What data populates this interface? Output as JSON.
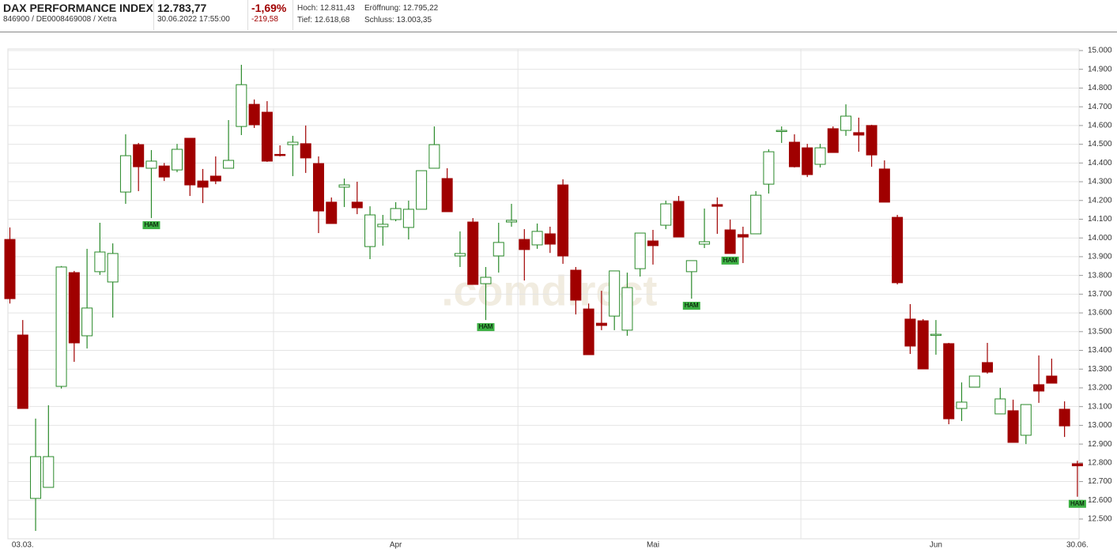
{
  "header": {
    "name": "DAX PERFORMANCE INDEX",
    "ids": "846900 / DE0008469008 / Xetra",
    "price": "12.783,77",
    "datetime": "30.06.2022 17:55:00",
    "change_pct": "-1,69%",
    "change_abs": "-219,58",
    "high": "Hoch: 12.811,43",
    "open": "Eröffnung: 12.795,22",
    "low": "Tief: 12.618,68",
    "close": "Schluss: 13.003,35",
    "watermark": ".comdirect"
  },
  "chart_data": {
    "type": "candlestick",
    "categories": [
      null,
      "03.03.",
      null,
      null,
      null,
      null,
      null,
      null,
      null,
      null,
      null,
      null,
      null,
      null,
      null,
      null,
      null,
      null,
      null,
      null,
      null,
      null,
      null,
      null,
      null,
      null,
      null,
      null,
      null,
      null,
      "Apr",
      null,
      null,
      null,
      null,
      null,
      null,
      null,
      null,
      null,
      null,
      null,
      null,
      null,
      null,
      null,
      null,
      null,
      null,
      null,
      "Mai",
      null,
      null,
      null,
      null,
      null,
      null,
      null,
      null,
      null,
      null,
      null,
      null,
      null,
      null,
      null,
      null,
      null,
      null,
      null,
      null,
      null,
      "Jun",
      null,
      null,
      null,
      null,
      null,
      null,
      null,
      null,
      null,
      null,
      "30.06."
    ],
    "open": [
      13992,
      13482,
      12610,
      12669,
      13208,
      13815,
      13478,
      13820,
      13765,
      14245,
      14498,
      14372,
      14384,
      14363,
      14532,
      14304,
      14330,
      14372,
      14595,
      14713,
      14671,
      14446,
      14498,
      14503,
      14397,
      14191,
      14271,
      14191,
      13954,
      14060,
      14098,
      14056,
      14153,
      14372,
      14317,
      13904,
      14085,
      13756,
      13904,
      14085,
      13992,
      13963,
      14022,
      14283,
      13828,
      13621,
      13545,
      13583,
      13508,
      13836,
      13984,
      14068,
      14195,
      13820,
      13967,
      14178,
      14043,
      14018,
      14022,
      14287,
      14570,
      14511,
      14481,
      14393,
      14583,
      14574,
      14562,
      14600,
      14368,
      14110,
      13567,
      13558,
      13482,
      13436,
      13090,
      13204,
      13335,
      13061,
      13078,
      12947,
      13217,
      13263,
      13086,
      12795
    ],
    "high": [
      14056,
      13562,
      13036,
      13107,
      13850,
      13824,
      13942,
      14081,
      13971,
      14553,
      14507,
      14469,
      14400,
      14502,
      14532,
      14368,
      14435,
      14629,
      14924,
      14739,
      14730,
      14494,
      14545,
      14600,
      14435,
      14216,
      14317,
      14300,
      14169,
      14123,
      14191,
      14199,
      14359,
      14595,
      14372,
      14035,
      14106,
      13845,
      14081,
      14182,
      14047,
      14077,
      14060,
      14313,
      13845,
      13650,
      13718,
      13824,
      13815,
      14026,
      14043,
      14199,
      14224,
      13879,
      14157,
      14216,
      14098,
      14060,
      14250,
      14473,
      14595,
      14553,
      14502,
      14502,
      14595,
      14713,
      14642,
      14604,
      14414,
      14123,
      13647,
      13567,
      13562,
      13440,
      13229,
      13263,
      13440,
      13200,
      13137,
      13111,
      13373,
      13356,
      13128,
      12811
    ],
    "low": [
      13650,
      13090,
      12437,
      12669,
      13196,
      13339,
      13410,
      13803,
      13575,
      14182,
      14250,
      14106,
      14304,
      14351,
      14224,
      14186,
      14287,
      14372,
      14549,
      14587,
      14406,
      14435,
      14330,
      14347,
      14026,
      14077,
      14165,
      14127,
      13887,
      13959,
      14089,
      13992,
      14153,
      14372,
      14140,
      13845,
      13752,
      13562,
      13815,
      14060,
      13773,
      13942,
      13920,
      13862,
      13592,
      13377,
      13508,
      13508,
      13478,
      13794,
      13858,
      14047,
      14005,
      13676,
      13946,
      14022,
      13917,
      13866,
      14022,
      14237,
      14507,
      14376,
      14325,
      14376,
      14456,
      14545,
      14460,
      14380,
      14191,
      13752,
      13381,
      13301,
      13377,
      13006,
      13023,
      13204,
      13276,
      13061,
      12909,
      12900,
      13120,
      13225,
      12938,
      12619
    ],
    "close": [
      13676,
      13090,
      12833,
      12833,
      13845,
      13440,
      13626,
      13925,
      13917,
      14439,
      14380,
      14410,
      14325,
      14473,
      14283,
      14271,
      14304,
      14414,
      14818,
      14604,
      14410,
      14443,
      14511,
      14427,
      14144,
      14077,
      14283,
      14161,
      14123,
      14073,
      14157,
      14153,
      14359,
      14498,
      14140,
      13917,
      13752,
      13790,
      13976,
      14094,
      13938,
      14035,
      13967,
      13904,
      13668,
      13377,
      13533,
      13824,
      13735,
      14026,
      13959,
      14182,
      14005,
      13879,
      13980,
      14169,
      13917,
      14005,
      14228,
      14460,
      14574,
      14380,
      14338,
      14481,
      14456,
      14650,
      14549,
      14443,
      14191,
      13761,
      13423,
      13301,
      13486,
      13035,
      13124,
      13263,
      13284,
      13141,
      12909,
      13111,
      13183,
      13225,
      12997,
      12784
    ],
    "up_color": "#2a8a2a",
    "down_color": "#a00000",
    "ylim": [
      12500,
      15000
    ],
    "yticks": [
      {
        "value": 12500,
        "label": "12.500"
      },
      {
        "value": 12600,
        "label": "12.600"
      },
      {
        "value": 12700,
        "label": "12.700"
      },
      {
        "value": 12800,
        "label": "12.800"
      },
      {
        "value": 12900,
        "label": "12.900"
      },
      {
        "value": 13000,
        "label": "13.000"
      },
      {
        "value": 13100,
        "label": "13.100"
      },
      {
        "value": 13200,
        "label": "13.200"
      },
      {
        "value": 13300,
        "label": "13.300"
      },
      {
        "value": 13400,
        "label": "13.400"
      },
      {
        "value": 13500,
        "label": "13.500"
      },
      {
        "value": 13600,
        "label": "13.600"
      },
      {
        "value": 13700,
        "label": "13.700"
      },
      {
        "value": 13800,
        "label": "13.800"
      },
      {
        "value": 13900,
        "label": "13.900"
      },
      {
        "value": 14000,
        "label": "14.000"
      },
      {
        "value": 14100,
        "label": "14.100"
      },
      {
        "value": 14200,
        "label": "14.200"
      },
      {
        "value": 14300,
        "label": "14.300"
      },
      {
        "value": 14400,
        "label": "14.400"
      },
      {
        "value": 14500,
        "label": "14.500"
      },
      {
        "value": 14600,
        "label": "14.600"
      },
      {
        "value": 14700,
        "label": "14.700"
      },
      {
        "value": 14800,
        "label": "14.800"
      },
      {
        "value": 14900,
        "label": "14.900"
      },
      {
        "value": 15000,
        "label": "15.000"
      }
    ],
    "grid": true,
    "annotations": [
      {
        "label": "HAM",
        "index": 11
      },
      {
        "label": "HAM",
        "index": 37
      },
      {
        "label": "HAM",
        "index": 53
      },
      {
        "label": "HAM",
        "index": 56
      },
      {
        "label": "HAM",
        "index": 83
      }
    ]
  }
}
